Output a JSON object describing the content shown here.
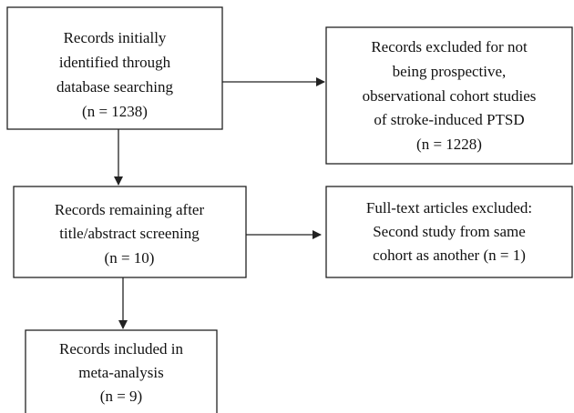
{
  "nodes": [
    {
      "lines": [
        "Records initially",
        "identified through",
        "database searching",
        "(n = 1238)"
      ]
    },
    {
      "lines": [
        "Records excluded for not",
        "being prospective,",
        "observational cohort studies",
        "of stroke-induced PTSD",
        "(n = 1228)"
      ]
    },
    {
      "lines": [
        "Records remaining after",
        "title/abstract screening",
        "(n = 10)"
      ]
    },
    {
      "lines": [
        "Full-text articles excluded:",
        "Second study from same",
        "cohort as another (n = 1)"
      ]
    },
    {
      "lines": [
        "Records included in",
        "meta-analysis",
        "(n = 9)"
      ]
    }
  ]
}
